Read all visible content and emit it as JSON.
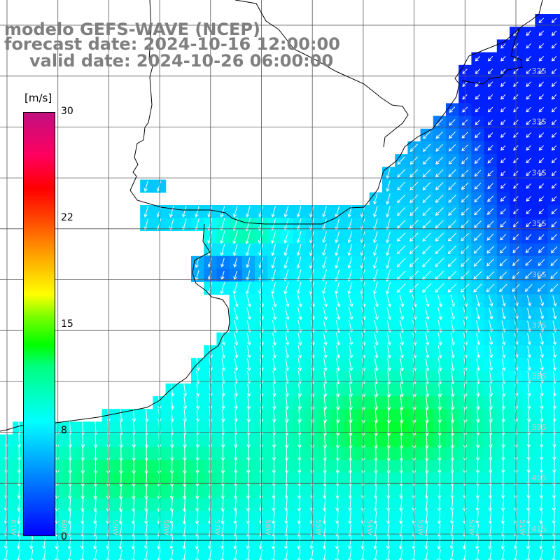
{
  "title": {
    "line1": "modelo GEFS-WAVE (NCEP)",
    "line2": "forecast date: 2024-10-16 12:00:00",
    "line3": "valid date: 2024-10-26 06:00:00"
  },
  "colorbar": {
    "unit": "[m/s]",
    "ticks": [
      {
        "label": "30",
        "value": 30
      },
      {
        "label": "22",
        "value": 22
      },
      {
        "label": "15",
        "value": 15
      },
      {
        "label": "8",
        "value": 8
      },
      {
        "label": "0",
        "value": 0
      }
    ]
  },
  "grid": {
    "lat_labels": [
      "32S",
      "33S",
      "34S",
      "35S",
      "36S",
      "37S",
      "38S",
      "39S",
      "40S",
      "41S"
    ],
    "lon_labels": [
      "61W",
      "60W",
      "59W",
      "58W",
      "57W",
      "56W",
      "55W",
      "54W",
      "53W",
      "52W",
      "51W"
    ]
  },
  "colors": {
    "land": "#ffffff",
    "title": "#7f7f7f",
    "grid": "#555555",
    "arrow": "#ffffff"
  }
}
